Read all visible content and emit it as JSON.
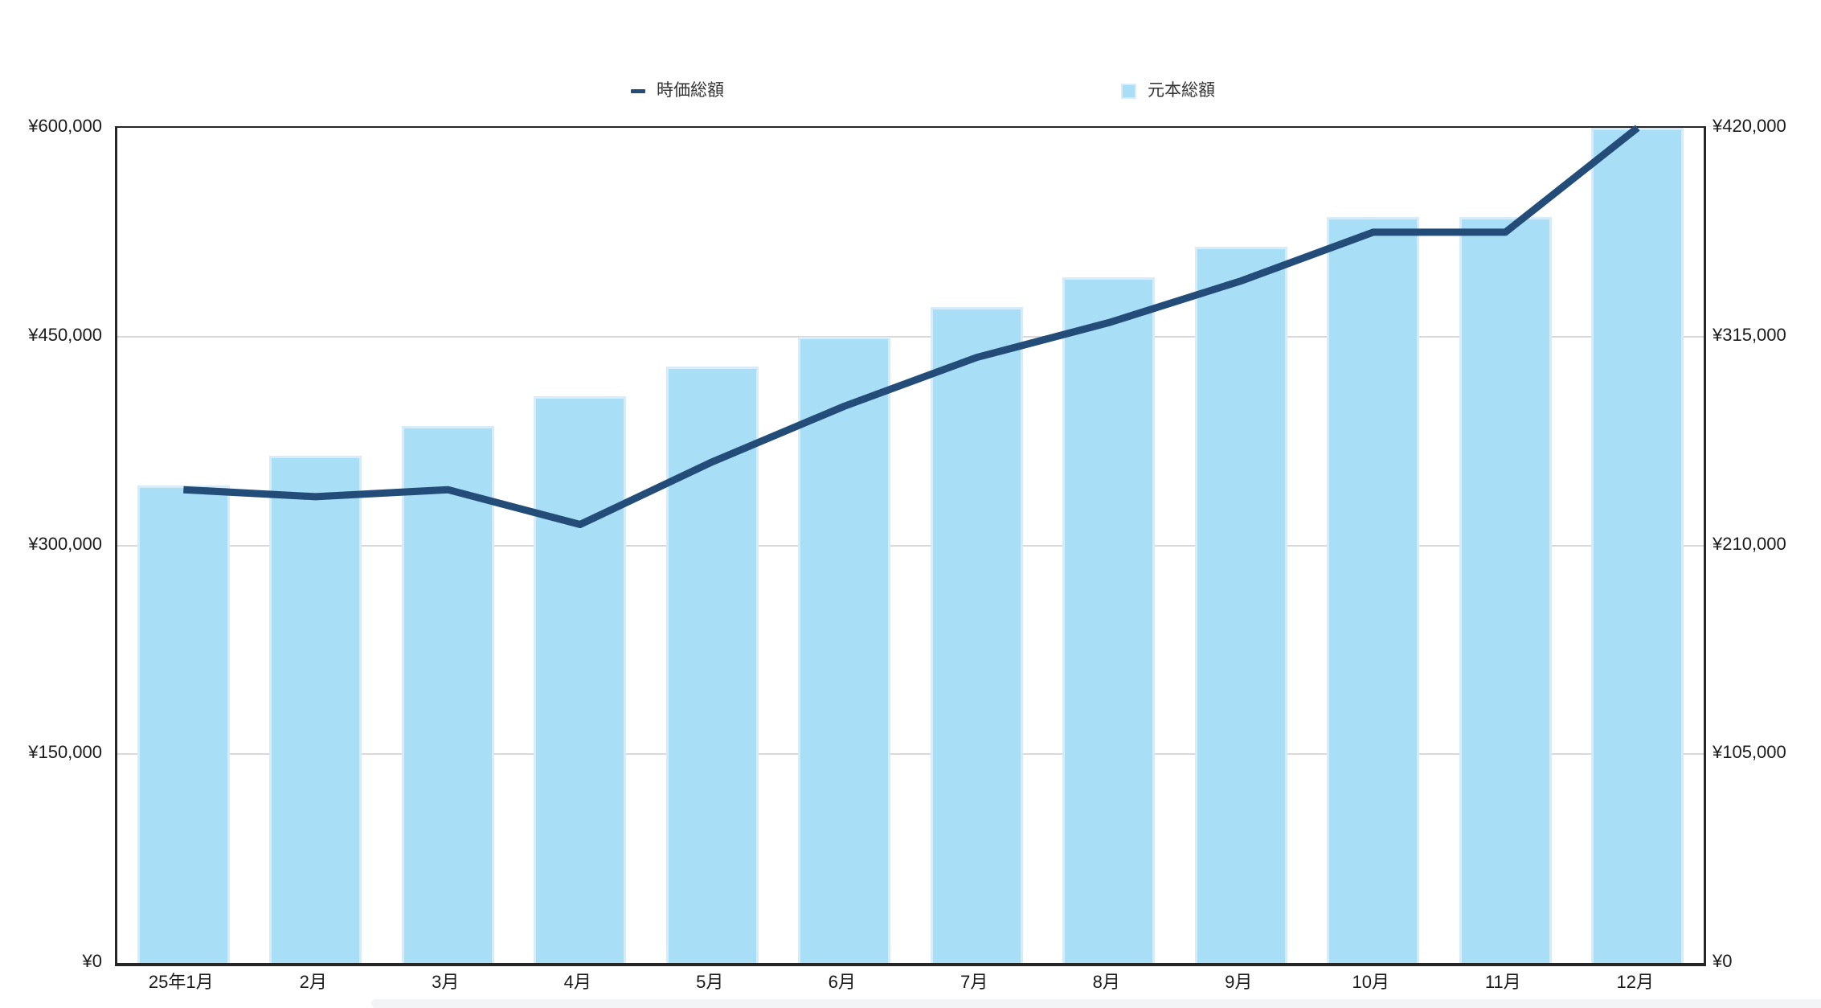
{
  "colors": {
    "line_series": "#234d78",
    "bar_fill": "#a9def7",
    "bar_border": "#d7ecfb",
    "grid": "#d9d9d9",
    "axis": "#262626",
    "tick_text": "#1a1a1a",
    "legend_text": "#333333"
  },
  "legend": {
    "items": [
      {
        "label": "時価総額",
        "marker": "line-marker"
      },
      {
        "label": "元本総額",
        "marker": "square-marker"
      }
    ]
  },
  "chart_data": {
    "type": "bar",
    "subtype": "combo-bar-line-dual-axis",
    "categories": [
      "25年1月",
      "2月",
      "3月",
      "4月",
      "5月",
      "6月",
      "7月",
      "8月",
      "9月",
      "10月",
      "11月",
      "12月"
    ],
    "series": [
      {
        "name": "時価総額",
        "type": "line",
        "axis": "left",
        "values": [
          340000,
          335000,
          340000,
          315000,
          360000,
          400000,
          435000,
          460000,
          490000,
          525000,
          525000,
          600000
        ]
      },
      {
        "name": "元本総額",
        "type": "bar",
        "axis": "right",
        "values": [
          240000,
          255000,
          270000,
          285000,
          300000,
          315000,
          330000,
          345000,
          360000,
          375000,
          375000,
          420000
        ]
      }
    ],
    "left_axis": {
      "ylim": [
        0,
        600000
      ],
      "tick_labels_top_to_bottom": [
        "¥600,000",
        "¥450,000",
        "¥300,000",
        "¥150,000",
        "¥0"
      ]
    },
    "right_axis": {
      "ylim": [
        0,
        420000
      ],
      "tick_labels_top_to_bottom": [
        "¥420,000",
        "¥315,000",
        "¥210,000",
        "¥105,000",
        "¥0"
      ]
    },
    "grid": true,
    "legend_position": "top"
  }
}
